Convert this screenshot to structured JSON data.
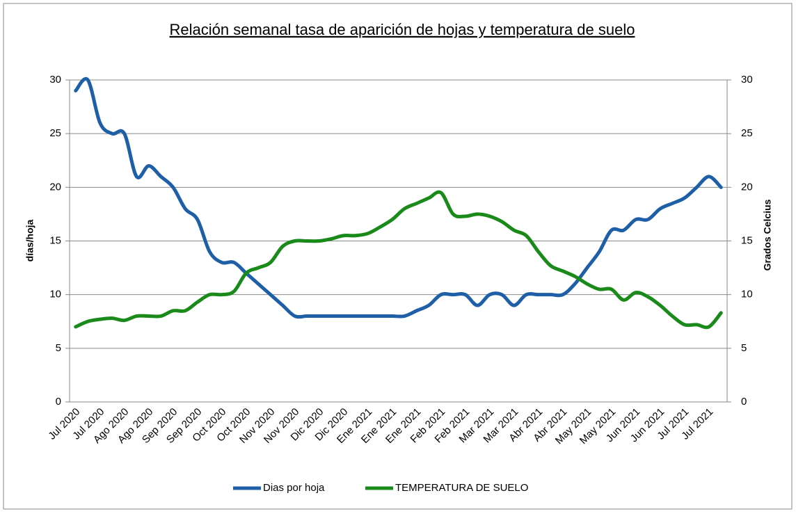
{
  "chart_data": {
    "type": "line",
    "title": "Relación semanal tasa de aparición de hojas y temperatura de suelo",
    "y_label": "días/hoja",
    "y2_label": "Grados Celcius",
    "categories": [
      "Jul 2020",
      null,
      "Jul 2020",
      null,
      "Ago 2020",
      null,
      "Ago 2020",
      null,
      "Sep 2020",
      null,
      "Sep 2020",
      null,
      "Oct 2020",
      null,
      "Oct 2020",
      null,
      "Nov 2020",
      null,
      "Nov 2020",
      null,
      "Dic 2020",
      null,
      "Dic 2020",
      null,
      "Ene 2021",
      null,
      "Ene 2021",
      null,
      "Ene 2021",
      null,
      "Feb 2021",
      null,
      "Feb 2021",
      null,
      "Mar 2021",
      null,
      "Mar 2021",
      null,
      "Abr 2021",
      null,
      "Abr 2021",
      null,
      "May 2021",
      null,
      "May 2021",
      null,
      "Jun 2021",
      null,
      "Jun 2021",
      null,
      "Jul 2021",
      null,
      "Jul 2021",
      null
    ],
    "series": [
      {
        "name": "Dias por hoja",
        "color": "#1f5fa8",
        "values": [
          29,
          30,
          26,
          25,
          25,
          21,
          22,
          21,
          20,
          18,
          17,
          14,
          13,
          13,
          12,
          11,
          10,
          9,
          8,
          8,
          8,
          8,
          8,
          8,
          8,
          8,
          8,
          8,
          8.5,
          9,
          10,
          10,
          10,
          9,
          10,
          10,
          9,
          10,
          10,
          10,
          10,
          11,
          12.5,
          14,
          16,
          16,
          17,
          17,
          18,
          18.5,
          19,
          20,
          21,
          20
        ]
      },
      {
        "name": "TEMPERATURA DE SUELO",
        "color": "#1a8a1a",
        "axis": "y2",
        "values": [
          7,
          7.5,
          7.7,
          7.8,
          7.6,
          8,
          8,
          8,
          8.5,
          8.5,
          9.3,
          10,
          10,
          10.3,
          12,
          12.5,
          13,
          14.5,
          15,
          15,
          15,
          15.2,
          15.5,
          15.5,
          15.7,
          16.3,
          17,
          18,
          18.5,
          19,
          19.5,
          17.5,
          17.3,
          17.5,
          17.3,
          16.8,
          16,
          15.5,
          14,
          12.7,
          12.2,
          11.7,
          11,
          10.5,
          10.5,
          9.5,
          10.2,
          9.8,
          9,
          8,
          7.2,
          7.2,
          7,
          8.3
        ]
      }
    ],
    "ylim": [
      0,
      30
    ],
    "yticks": [
      0,
      5,
      10,
      15,
      20,
      25,
      30
    ],
    "y2lim": [
      0,
      30
    ],
    "y2ticks": [
      0,
      5,
      10,
      15,
      20,
      25,
      30
    ],
    "grid": true,
    "legend": "bottom"
  }
}
